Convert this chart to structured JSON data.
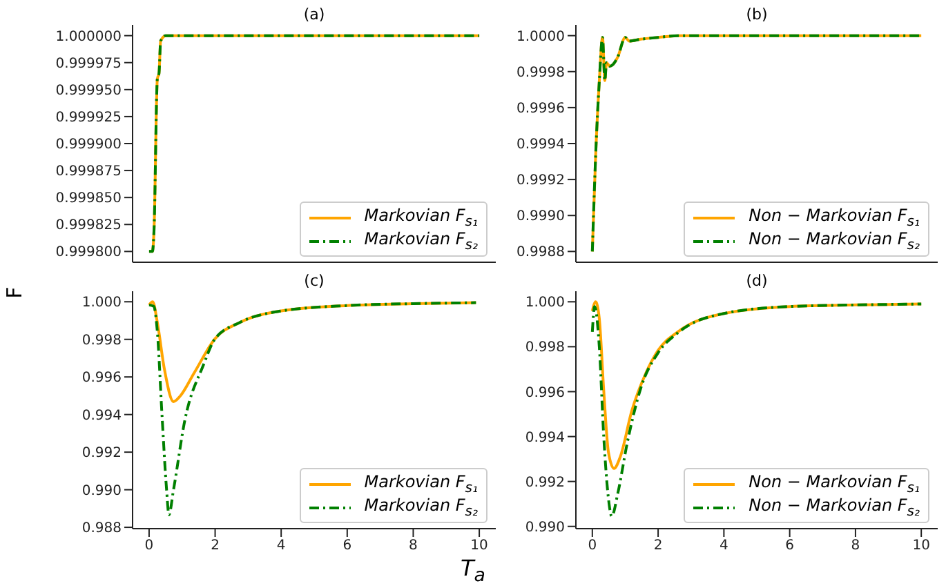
{
  "chart_data": [
    {
      "type": "line",
      "title": "(a)",
      "tick_labels": "y",
      "legend": "bottom right",
      "xlim": [
        -0.5,
        10.5
      ],
      "xticks": [
        0,
        2,
        4,
        6,
        8,
        10
      ],
      "ylim": [
        0.99979,
        1.00001
      ],
      "yticks": [
        {
          "value": 0.9998,
          "label": "0.999800"
        },
        {
          "value": 0.999825,
          "label": "0.999825"
        },
        {
          "value": 0.99985,
          "label": "0.999850"
        },
        {
          "value": 0.999875,
          "label": "0.999875"
        },
        {
          "value": 0.9999,
          "label": "0.999900"
        },
        {
          "value": 0.999925,
          "label": "0.999925"
        },
        {
          "value": 0.99995,
          "label": "0.999950"
        },
        {
          "value": 0.999975,
          "label": "0.999975"
        },
        {
          "value": 1.0,
          "label": "1.000000"
        }
      ],
      "series": [
        {
          "name": "Markovian F$_{s₁}$",
          "color": "#ffa500",
          "line_style": "solid",
          "x": [
            0,
            0.1,
            0.15,
            0.25,
            0.3,
            0.35,
            0.5,
            10
          ],
          "values": [
            0.9998,
            0.9998,
            0.99982,
            0.99996,
            0.999965,
            0.999995,
            1.0,
            1.0
          ]
        },
        {
          "name": "Markovian F$_{s₂}$",
          "color": "#008000",
          "line_style": "dashed",
          "x": [
            0,
            0.1,
            0.15,
            0.25,
            0.3,
            0.35,
            0.5,
            10
          ],
          "values": [
            0.9998,
            0.9998,
            0.99982,
            0.99996,
            0.999965,
            0.999995,
            1.0,
            1.0
          ]
        }
      ]
    },
    {
      "type": "line",
      "title": "(b)",
      "tick_labels": "y",
      "legend": "bottom right",
      "xlim": [
        -0.5,
        10.5
      ],
      "xticks": [
        0,
        2,
        4,
        6,
        8,
        10
      ],
      "ylim": [
        0.99874,
        1.00006
      ],
      "yticks": [
        {
          "value": 0.9988,
          "label": "0.9988"
        },
        {
          "value": 0.999,
          "label": "0.9990"
        },
        {
          "value": 0.9992,
          "label": "0.9992"
        },
        {
          "value": 0.9994,
          "label": "0.9994"
        },
        {
          "value": 0.9996,
          "label": "0.9996"
        },
        {
          "value": 0.9998,
          "label": "0.9998"
        },
        {
          "value": 1.0,
          "label": "1.0000"
        }
      ],
      "series": [
        {
          "name": "Non − Markovian F$_{s₁}$",
          "color": "#ffa500",
          "line_style": "solid",
          "x": [
            0,
            0.1,
            0.21,
            0.31,
            0.38,
            0.43,
            0.53,
            0.63,
            0.77,
            1.0,
            1.12,
            1.47,
            2.0,
            2.6,
            10
          ],
          "values": [
            0.9988,
            0.99933,
            0.99974,
            0.99999,
            0.99975,
            0.99985,
            0.99983,
            0.99984,
            0.99988,
            0.99999,
            0.99997,
            0.99998,
            0.99999,
            1.0,
            1.0
          ]
        },
        {
          "name": "Non − Markovian F$_{s₂}$",
          "color": "#008000",
          "line_style": "dashed",
          "x": [
            0,
            0.1,
            0.21,
            0.31,
            0.38,
            0.43,
            0.53,
            0.63,
            0.77,
            1.0,
            1.12,
            1.47,
            2.0,
            2.6,
            10
          ],
          "values": [
            0.9988,
            0.99933,
            0.99974,
            0.99999,
            0.99975,
            0.99985,
            0.99983,
            0.99984,
            0.99988,
            0.99999,
            0.99997,
            0.99998,
            0.99999,
            1.0,
            1.0
          ]
        }
      ]
    },
    {
      "type": "line",
      "title": "(c)",
      "xlabel": "T$_{a}$",
      "ylabel": "F",
      "legend": "bottom right",
      "xlim": [
        -0.5,
        10.5
      ],
      "xticks": [
        0,
        2,
        4,
        6,
        8,
        10
      ],
      "ylim": [
        0.98793,
        1.00056
      ],
      "yticks": [
        {
          "value": 0.988,
          "label": "0.988"
        },
        {
          "value": 0.99,
          "label": "0.990"
        },
        {
          "value": 0.992,
          "label": "0.992"
        },
        {
          "value": 0.994,
          "label": "0.994"
        },
        {
          "value": 0.996,
          "label": "0.996"
        },
        {
          "value": 0.998,
          "label": "0.998"
        },
        {
          "value": 1.0,
          "label": "1.000"
        }
      ],
      "series": [
        {
          "name": "Markovian F$_{s₁}$",
          "color": "#ffa500",
          "line_style": "solid",
          "x": [
            0,
            0.11,
            0.25,
            0.46,
            0.74,
            0.94,
            1.36,
            2,
            2.75,
            4,
            6,
            8,
            9.9
          ],
          "values": [
            0.99983,
            1.0,
            0.9989,
            0.99645,
            0.99469,
            0.99498,
            0.9962,
            0.99804,
            0.9989,
            0.99951,
            0.9998,
            0.9999,
            0.99995
          ]
        },
        {
          "name": "Markovian F$_{s₂}$",
          "color": "#008000",
          "line_style": "dashed",
          "x": [
            0,
            0.14,
            0.25,
            0.39,
            0.53,
            0.6,
            0.74,
            1.08,
            1.64,
            2,
            2.75,
            4,
            6,
            8,
            9.9
          ],
          "values": [
            0.99983,
            0.99976,
            0.99841,
            0.994,
            0.99,
            0.98867,
            0.99,
            0.99367,
            0.99661,
            0.99804,
            0.9989,
            0.99951,
            0.9998,
            0.9999,
            0.99995
          ]
        }
      ]
    },
    {
      "type": "line",
      "title": "(d)",
      "legend": "bottom right",
      "xlim": [
        -0.5,
        10.5
      ],
      "xticks": [
        0,
        2,
        4,
        6,
        8,
        10
      ],
      "ylim": [
        0.9899,
        1.00047
      ],
      "yticks": [
        {
          "value": 0.99,
          "label": "0.990"
        },
        {
          "value": 0.992,
          "label": "0.992"
        },
        {
          "value": 0.994,
          "label": "0.994"
        },
        {
          "value": 0.996,
          "label": "0.996"
        },
        {
          "value": 0.998,
          "label": "0.998"
        },
        {
          "value": 1.0,
          "label": "1.000"
        }
      ],
      "series": [
        {
          "name": "Non − Markovian F$_{s₁}$",
          "color": "#ffa500",
          "line_style": "solid",
          "x": [
            0,
            0.1,
            0.21,
            0.35,
            0.49,
            0.66,
            0.85,
            1.2,
            1.62,
            2,
            2.6,
            4,
            6,
            8,
            10
          ],
          "values": [
            0.99959,
            1.0,
            0.99928,
            0.99598,
            0.9933,
            0.99258,
            0.9931,
            0.99515,
            0.9968,
            0.99784,
            0.99866,
            0.99948,
            0.99979,
            0.99986,
            0.9999
          ]
        },
        {
          "name": "Non − Markovian F$_{s₂}$",
          "color": "#008000",
          "line_style": "dashed",
          "x": [
            0,
            0.07,
            0.21,
            0.35,
            0.49,
            0.59,
            0.77,
            1.06,
            1.48,
            2,
            2.6,
            4,
            6,
            8,
            10
          ],
          "values": [
            0.99866,
            0.99979,
            0.99804,
            0.99392,
            0.99124,
            0.99045,
            0.99144,
            0.99371,
            0.99619,
            0.99773,
            0.99862,
            0.99948,
            0.99979,
            0.99986,
            0.9999
          ]
        }
      ]
    }
  ]
}
